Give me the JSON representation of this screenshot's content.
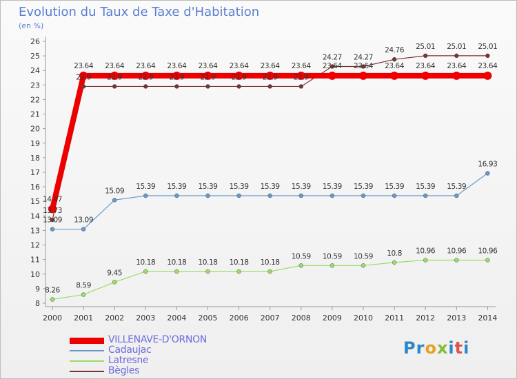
{
  "title": "Evolution du Taux de Taxe d'Habitation",
  "subtitle": "(en %)",
  "logo": "Proxiti",
  "chart_data": {
    "type": "line",
    "title": "Evolution du Taux de Taxe d'Habitation",
    "ylabel": "(en %)",
    "x": [
      "2000",
      "2001",
      "2002",
      "2003",
      "2004",
      "2005",
      "2006",
      "2007",
      "2008",
      "2009",
      "2010",
      "2011",
      "2012",
      "2013",
      "2014"
    ],
    "ylim": [
      8,
      26
    ],
    "yticks": [
      8,
      9,
      10,
      11,
      12,
      13,
      14,
      15,
      16,
      17,
      18,
      19,
      20,
      21,
      22,
      23,
      24,
      25,
      26
    ],
    "grid": false,
    "legend": "bottom-left",
    "series": [
      {
        "name": "VILLENAVE-D'ORNON",
        "color": "#ee0000",
        "width": 8,
        "values": [
          14.47,
          23.64,
          23.64,
          23.64,
          23.64,
          23.64,
          23.64,
          23.64,
          23.64,
          23.64,
          23.64,
          23.64,
          23.64,
          23.64,
          23.64
        ],
        "labels": [
          "14.47",
          "23.64",
          "23.64",
          "23.64",
          "23.64",
          "23.64",
          "23.64",
          "23.64",
          "23.64",
          "23.64",
          "23.64",
          "23.64",
          "23.64",
          "23.64",
          "23.64"
        ]
      },
      {
        "name": "Cadaujac",
        "color": "#6699cc",
        "width": 1.2,
        "values": [
          13.09,
          13.09,
          15.09,
          15.39,
          15.39,
          15.39,
          15.39,
          15.39,
          15.39,
          15.39,
          15.39,
          15.39,
          15.39,
          15.39,
          16.93
        ],
        "labels": [
          "13.09",
          "13.09",
          "15.09",
          "15.39",
          "15.39",
          "15.39",
          "15.39",
          "15.39",
          "15.39",
          "15.39",
          "15.39",
          "15.39",
          "15.39",
          "15.39",
          "16.93"
        ]
      },
      {
        "name": "Latresne",
        "color": "#99dd66",
        "width": 1.2,
        "values": [
          8.26,
          8.59,
          9.45,
          10.18,
          10.18,
          10.18,
          10.18,
          10.18,
          10.59,
          10.59,
          10.59,
          10.8,
          10.96,
          10.96,
          10.96
        ],
        "labels": [
          "8.26",
          "8.59",
          "9.45",
          "10.18",
          "10.18",
          "10.18",
          "10.18",
          "10.18",
          "10.59",
          "10.59",
          "10.59",
          "10.8",
          "10.96",
          "10.96",
          "10.96"
        ]
      },
      {
        "name": "Bègles",
        "color": "#7a3333",
        "width": 1.2,
        "values": [
          13.73,
          22.9,
          22.9,
          22.9,
          22.9,
          22.9,
          22.9,
          22.9,
          22.9,
          24.27,
          24.27,
          24.76,
          25.01,
          25.01,
          25.01
        ],
        "labels": [
          "13.73",
          "22.9",
          "22.9",
          "22.9",
          "22.9",
          "22.9",
          "22.9",
          "22.9",
          "22.9",
          "24.27",
          "24.27",
          "24.76",
          "25.01",
          "25.01",
          "25.01"
        ]
      }
    ]
  }
}
